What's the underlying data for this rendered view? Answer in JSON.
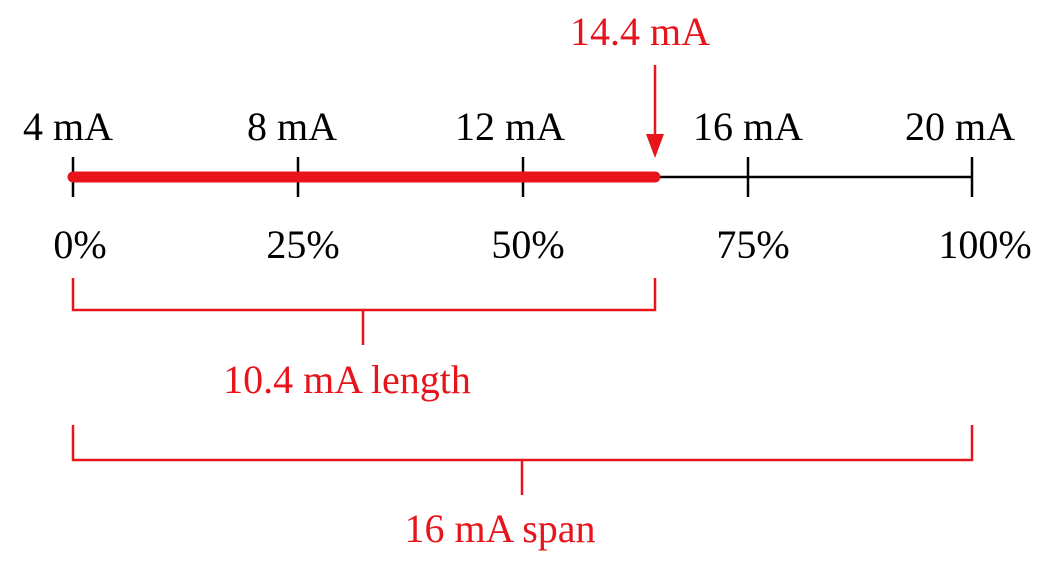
{
  "scale": {
    "top_labels": [
      "4 mA",
      "8 mA",
      "12 mA",
      "16 mA",
      "20 mA"
    ],
    "bottom_labels": [
      "0%",
      "25%",
      "50%",
      "75%",
      "100%"
    ]
  },
  "marker": {
    "label": "14.4 mA"
  },
  "length": {
    "label": "10.4 mA length"
  },
  "span": {
    "label": "16 mA span"
  }
}
